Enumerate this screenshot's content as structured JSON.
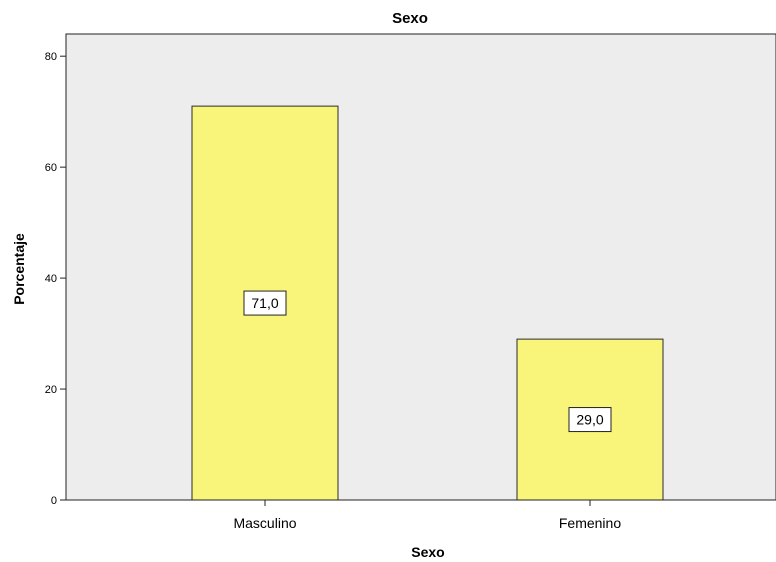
{
  "chart_data": {
    "type": "bar",
    "title": "Sexo",
    "xlabel": "Sexo",
    "ylabel": "Porcentaje",
    "categories": [
      "Masculino",
      "Femenino"
    ],
    "values": [
      71.0,
      29.0
    ],
    "value_labels": [
      "71,0",
      "29,0"
    ],
    "ylim": [
      0,
      84
    ],
    "yticks": [
      0,
      20,
      40,
      60,
      80
    ],
    "grid": false,
    "colors": {
      "plot_background": "#ededed",
      "bar_fill": "#f8f57a",
      "bar_stroke": "#2a2a2a"
    }
  }
}
